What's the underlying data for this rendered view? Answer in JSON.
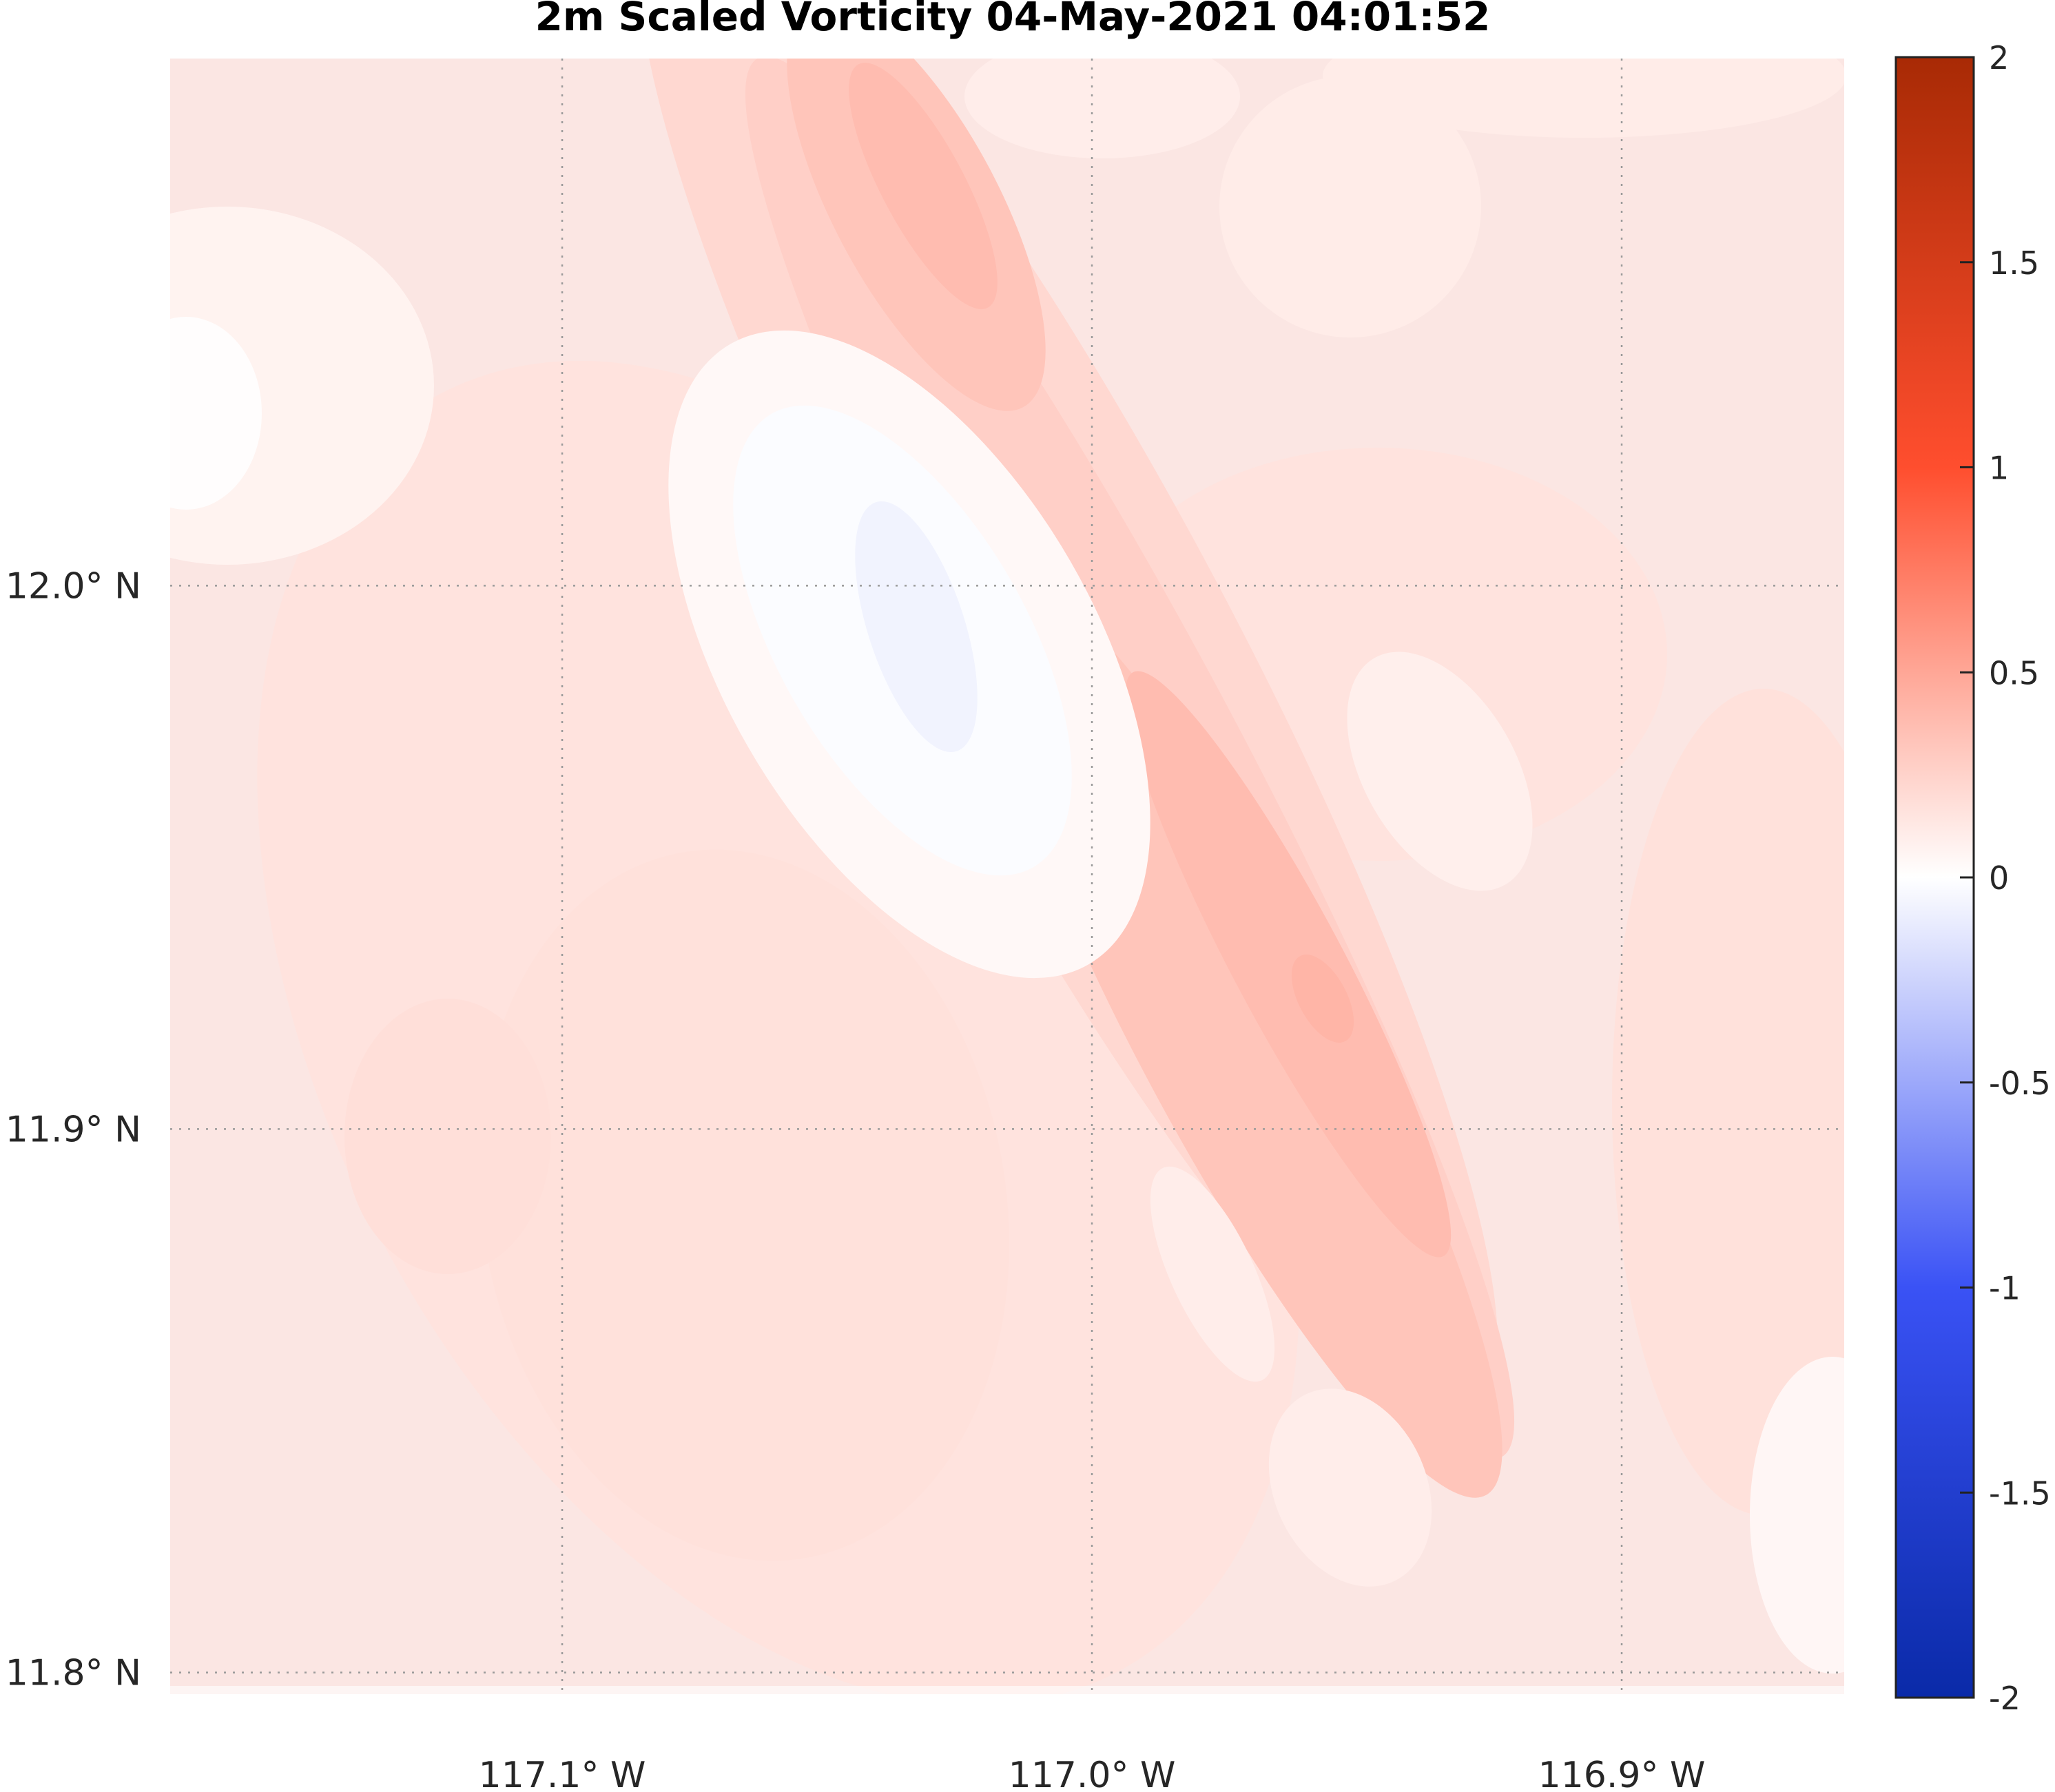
{
  "chart_data": {
    "type": "heatmap",
    "title": "2m Scaled Vorticity  04-May-2021 04:01:52",
    "xlabel": "",
    "ylabel": "",
    "x_axis": {
      "range": [
        -117.174,
        -116.858
      ],
      "ticks": [
        -117.1,
        -117.0,
        -116.9
      ],
      "tick_labels": [
        "117.1° W",
        "117.0° W",
        "116.9° W"
      ]
    },
    "y_axis": {
      "range": [
        11.796,
        12.097
      ],
      "ticks": [
        11.8,
        11.9,
        12.0
      ],
      "tick_labels": [
        "11.8° N",
        "11.9° N",
        "12.0° N"
      ]
    },
    "grid": true,
    "colorbar": {
      "range": [
        -2,
        2
      ],
      "ticks": [
        -2,
        -1.5,
        -1,
        -0.5,
        0,
        0.5,
        1,
        1.5,
        2
      ],
      "tick_labels": [
        "-2",
        "-1.5",
        "-1",
        "-0.5",
        "0",
        "0.5",
        "1",
        "1.5",
        "2"
      ],
      "colormap": "blue-white-red diverging",
      "low_color": "#0a2aa8",
      "mid_color": "#ffffff",
      "high_color": "#a82a05"
    },
    "field_features": [
      {
        "lon": -117.025,
        "lat": 12.065,
        "value": 0.45,
        "kind": "positive maximum (north ridge)"
      },
      {
        "lon": -116.96,
        "lat": 11.93,
        "value": 0.5,
        "kind": "positive maximum (central ridge)"
      },
      {
        "lon": -117.04,
        "lat": 11.995,
        "value": -0.1,
        "kind": "negative minimum (west of ridge)"
      },
      {
        "lon": -117.165,
        "lat": 12.04,
        "value": -0.05,
        "kind": "near-zero pocket (west edge)"
      },
      {
        "lon": -116.935,
        "lat": 11.965,
        "value": 0.1,
        "kind": "weak pocket (east of ridge)"
      },
      {
        "lon": -116.87,
        "lat": 11.84,
        "value": 0.05,
        "kind": "weak pocket (southeast)"
      }
    ]
  }
}
